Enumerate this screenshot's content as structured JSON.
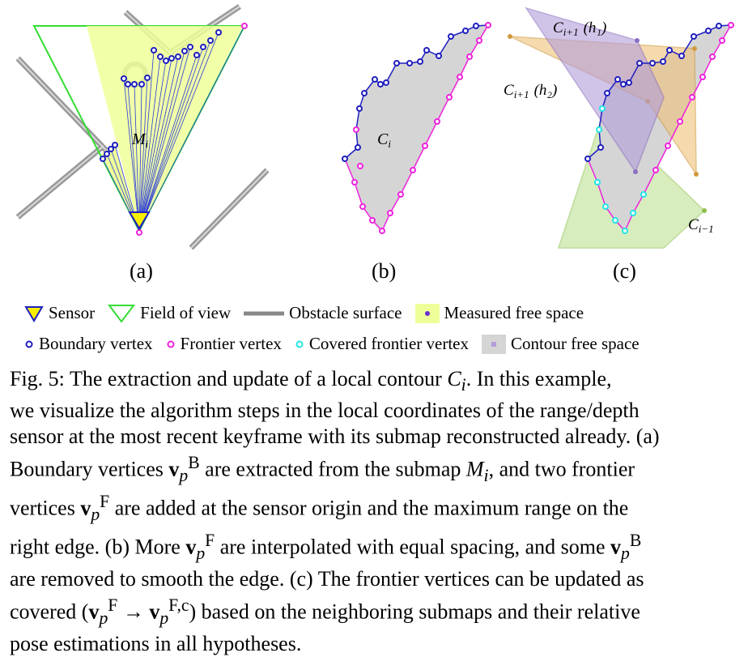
{
  "panels": {
    "a": {
      "label": "(a)",
      "submap_label": "M",
      "submap_sub": "i"
    },
    "b": {
      "label": "(b)",
      "contour_label": "C",
      "contour_sub": "i"
    },
    "c": {
      "label": "(c)",
      "h1_label": "C",
      "h1_sub": "i+1",
      "h1_hyp": "(h₁)",
      "h2_label": "C",
      "h2_sub": "i+1",
      "h2_hyp": "(h₂)",
      "prev_label": "C",
      "prev_sub": "i−1"
    }
  },
  "legend": {
    "sensor": "Sensor",
    "fov": "Field of view",
    "obstacle": "Obstacle surface",
    "measured": "Measured free space",
    "boundary": "Boundary vertex",
    "frontier": "Frontier vertex",
    "covered": "Covered frontier vertex",
    "contour": "Contour free space"
  },
  "colors": {
    "fov": "#33dd33",
    "measured": "#eeff99",
    "boundary": "#1f1fbf",
    "frontier": "#ee22dd",
    "covered": "#22e5e5",
    "contour": "#d5d5d5",
    "h1": "#b39ddb",
    "h2": "#f0c27a",
    "prev": "#b7e08a",
    "obstacle": "#888888"
  },
  "caption": {
    "l1": "Fig. 5: The extraction and update of a local contour",
    "l1_sym": "C",
    "l1_sub": "i",
    "l1_end": ". In this example,",
    "l2": "we visualize the algorithm steps in the local coordinates of the range/depth",
    "l3": "sensor at the most recent keyframe with its submap reconstructed already. (a)",
    "l4a": "Boundary vertices",
    "l4b": "are extracted from the submap",
    "l4c": ", and two frontier",
    "l5a": "vertices",
    "l5b": "are added at the sensor origin and the maximum range on the",
    "l6a": "right edge. (b) More",
    "l6b": "are interpolated with equal spacing, and some",
    "l7": "are removed to smooth the edge. (c) The frontier vertices can be updated as",
    "l8a": "covered (",
    "l8b": ") based on the neighboring submaps and their relative",
    "l9": "pose estimations in all hypotheses.",
    "v": "v",
    "p": "p",
    "B": "B",
    "F": "F",
    "Fc": "F,c",
    "arrow": "→",
    "M": "M",
    "i": "i"
  }
}
